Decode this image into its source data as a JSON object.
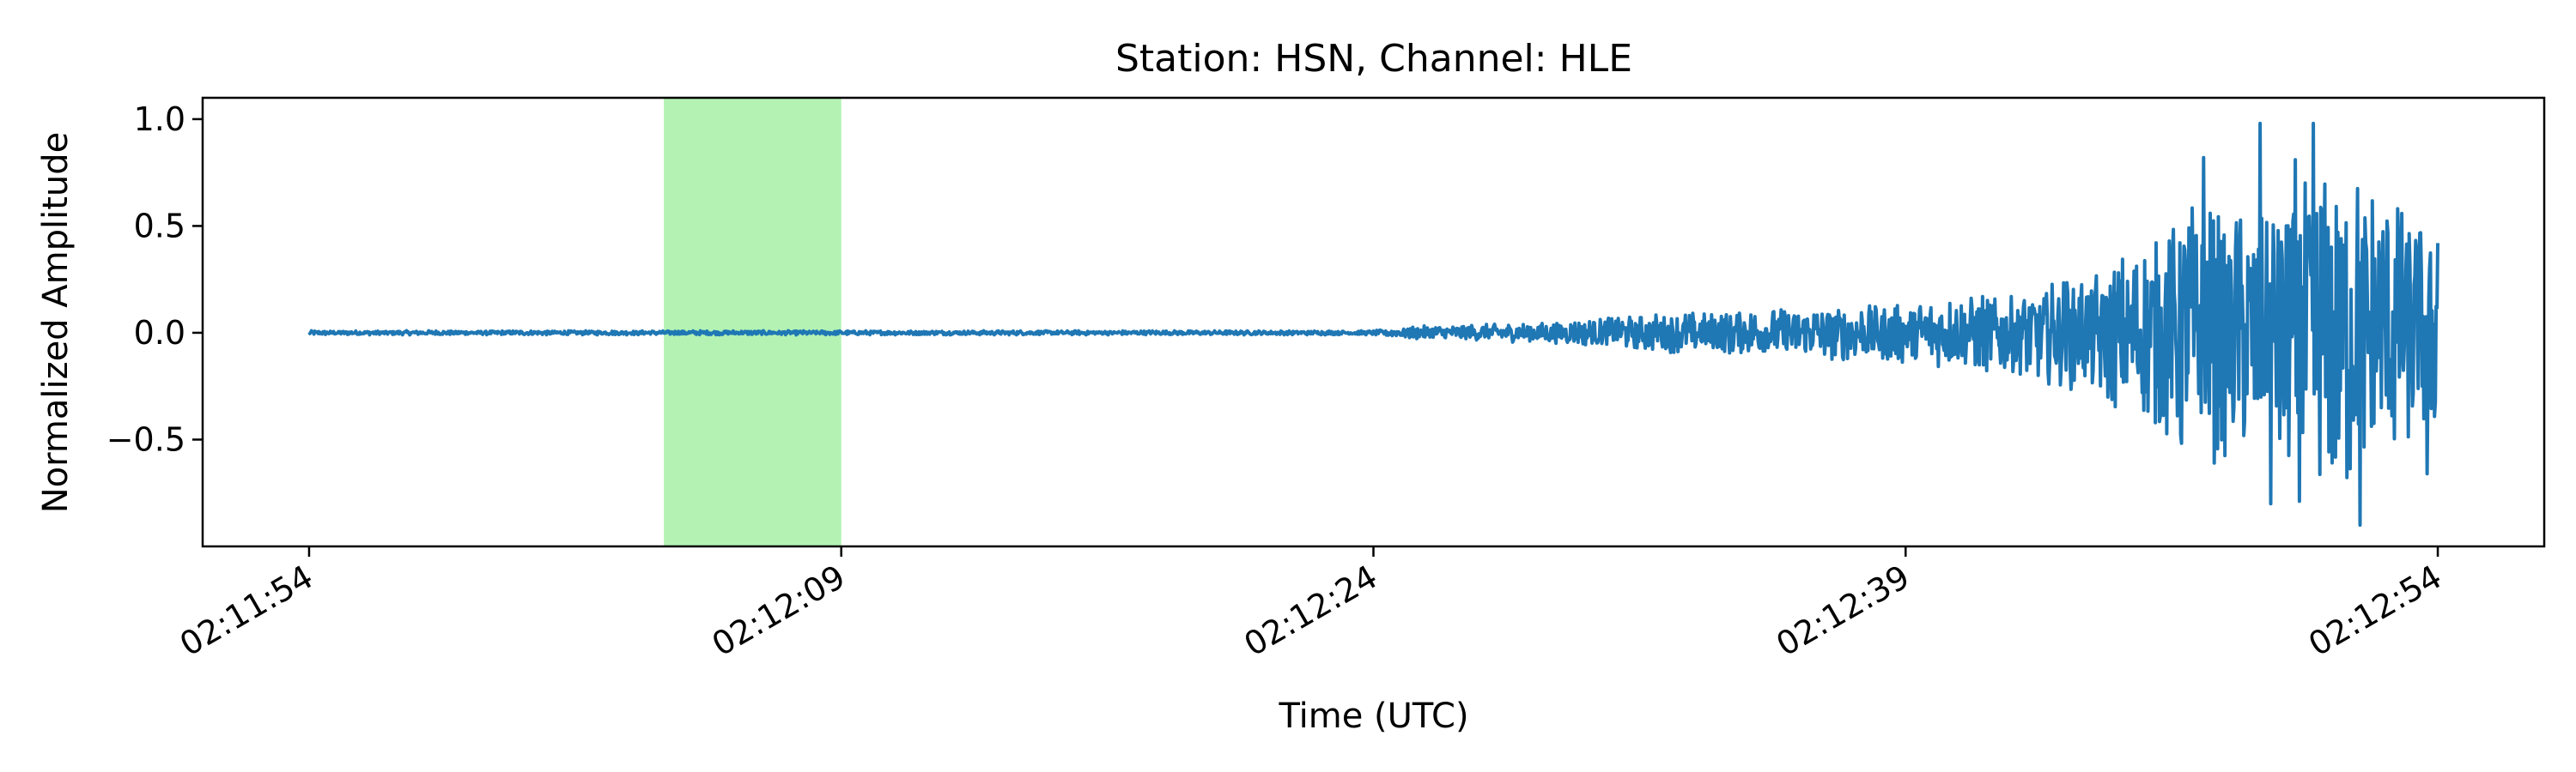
{
  "chart_data": {
    "type": "line",
    "title": "Station: HSN, Channel: HLE",
    "xlabel": "Time (UTC)",
    "ylabel": "Normalized Amplitude",
    "x_unit": "time (UTC)",
    "x_start": "02:11:54",
    "x_end": "02:12:54",
    "xlim": [
      "02:11:51",
      "02:12:57"
    ],
    "ylim": [
      -1.0,
      1.1
    ],
    "x_ticks": [
      "02:11:54",
      "02:12:09",
      "02:12:24",
      "02:12:39",
      "02:12:54"
    ],
    "y_ticks": [
      {
        "value": 1.0,
        "label": "1.0"
      },
      {
        "value": 0.5,
        "label": "0.5"
      },
      {
        "value": 0.0,
        "label": "0.0"
      },
      {
        "value": -0.5,
        "label": "−0.5"
      }
    ],
    "highlight": {
      "x_start": "02:12:04",
      "x_end": "02:12:09",
      "color": "#b3f2b3"
    },
    "series": [
      {
        "color": "#1f77b4",
        "envelope": [
          {
            "t": "02:11:54",
            "amplitude": 0.01
          },
          {
            "t": "02:12:24",
            "amplitude": 0.01
          },
          {
            "t": "02:12:25",
            "amplitude": 0.03
          },
          {
            "t": "02:12:29",
            "amplitude": 0.05
          },
          {
            "t": "02:12:32",
            "amplitude": 0.09
          },
          {
            "t": "02:12:36",
            "amplitude": 0.12
          },
          {
            "t": "02:12:39",
            "amplitude": 0.15
          },
          {
            "t": "02:12:42",
            "amplitude": 0.2
          },
          {
            "t": "02:12:44",
            "amplitude": 0.28
          },
          {
            "t": "02:12:46",
            "amplitude": 0.45
          },
          {
            "t": "02:12:47",
            "amplitude": 0.65
          },
          {
            "t": "02:12:49",
            "amplitude": 0.55
          },
          {
            "t": "02:12:50",
            "amplitude": 0.85
          },
          {
            "t": "02:12:52",
            "amplitude": 0.75
          },
          {
            "t": "02:12:54",
            "amplitude": 0.45
          }
        ],
        "peaks": [
          {
            "t": "02:12:47.4",
            "y": 0.82
          },
          {
            "t": "02:12:49.0",
            "y": 0.98
          },
          {
            "t": "02:12:49.3",
            "y": -0.8
          },
          {
            "t": "02:12:50.5",
            "y": 0.98
          },
          {
            "t": "02:12:51.8",
            "y": -0.9
          },
          {
            "t": "02:12:53.7",
            "y": -0.66
          },
          {
            "t": "02:12:54.0",
            "y": 0.42
          }
        ]
      }
    ]
  }
}
